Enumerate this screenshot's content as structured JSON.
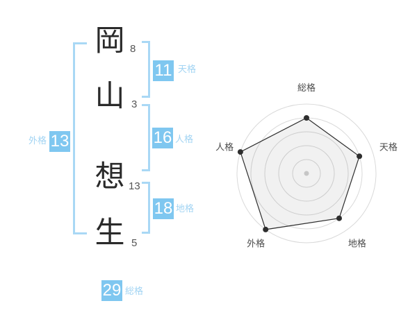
{
  "name_analysis": {
    "characters": [
      {
        "char": "岡",
        "strokes": "8"
      },
      {
        "char": "山",
        "strokes": "3"
      },
      {
        "char": "想",
        "strokes": "13"
      },
      {
        "char": "生",
        "strokes": "5"
      }
    ],
    "kaku": {
      "tenkaku": {
        "label": "天格",
        "value": "11"
      },
      "jinkaku": {
        "label": "人格",
        "value": "16"
      },
      "chikaku": {
        "label": "地格",
        "value": "18"
      },
      "gaikaku": {
        "label": "外格",
        "value": "13"
      },
      "soukaku": {
        "label": "総格",
        "value": "29"
      }
    }
  },
  "chart_data": {
    "type": "radar",
    "title": "",
    "categories": [
      "総格",
      "天格",
      "地格",
      "外格",
      "人格"
    ],
    "values": [
      4,
      4,
      4,
      5,
      5
    ],
    "max": 5,
    "rings": 5,
    "start_angle_deg": -90,
    "grid": "circular",
    "legend": "none"
  },
  "colors": {
    "accent": "#7fc7f0",
    "accent_line": "#a9d8f5",
    "accent_label": "#a2d4f3",
    "text_dark": "#2a2a2a",
    "stroke_count": "#555555",
    "ring": "#d9d9d9",
    "radar_fill": "rgba(0,0,0,0.055)",
    "radar_line": "#2e2e2e",
    "radar_dot": "#2e2e2e",
    "center_dot": "#c6c6c6",
    "chart_label": "#4a4a4a"
  }
}
